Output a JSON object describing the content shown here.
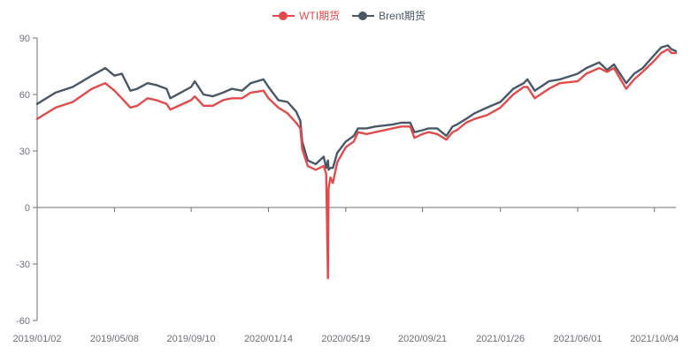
{
  "chart_data": {
    "type": "line",
    "title": "",
    "xlabel": "",
    "ylabel": "",
    "ylim": [
      -60,
      90
    ],
    "yticks": [
      90,
      60,
      30,
      0,
      -30,
      -60
    ],
    "categories": [
      "2019/01/02",
      "2019/05/08",
      "2019/09/10",
      "2020/01/14",
      "2020/05/19",
      "2020/09/21",
      "2021/01/26",
      "2021/06/01",
      "2021/10/04"
    ],
    "x": [
      "2019-01-02",
      "2019-02-01",
      "2019-03-01",
      "2019-04-01",
      "2019-04-23",
      "2019-05-08",
      "2019-05-20",
      "2019-06-03",
      "2019-06-14",
      "2019-07-01",
      "2019-07-15",
      "2019-08-01",
      "2019-08-07",
      "2019-09-10",
      "2019-09-16",
      "2019-09-30",
      "2019-10-15",
      "2019-11-01",
      "2019-11-15",
      "2019-12-02",
      "2019-12-16",
      "2020-01-06",
      "2020-01-14",
      "2020-01-30",
      "2020-02-14",
      "2020-02-28",
      "2020-03-06",
      "2020-03-09",
      "2020-03-18",
      "2020-03-31",
      "2020-04-13",
      "2020-04-17",
      "2020-04-20",
      "2020-04-21",
      "2020-04-24",
      "2020-04-28",
      "2020-05-05",
      "2020-05-19",
      "2020-06-01",
      "2020-06-08",
      "2020-06-22",
      "2020-07-06",
      "2020-08-03",
      "2020-08-17",
      "2020-09-01",
      "2020-09-08",
      "2020-09-21",
      "2020-10-01",
      "2020-10-15",
      "2020-10-30",
      "2020-11-09",
      "2020-11-16",
      "2020-12-01",
      "2020-12-15",
      "2021-01-04",
      "2021-01-26",
      "2021-02-16",
      "2021-03-05",
      "2021-03-11",
      "2021-03-23",
      "2021-04-15",
      "2021-05-03",
      "2021-06-01",
      "2021-06-15",
      "2021-07-06",
      "2021-07-19",
      "2021-07-30",
      "2021-08-19",
      "2021-09-01",
      "2021-09-15",
      "2021-10-04",
      "2021-10-15",
      "2021-10-26",
      "2021-11-01",
      "2021-11-08"
    ],
    "series": [
      {
        "name": "WTI期货",
        "color": "#e24b4b",
        "values": [
          47,
          53,
          56,
          63,
          66,
          62,
          58,
          53,
          54,
          58,
          57,
          55,
          52,
          57,
          59,
          54,
          54,
          57,
          58,
          58,
          61,
          62,
          58,
          53,
          50,
          45,
          42,
          31,
          22,
          20,
          22,
          18,
          -37.6,
          10,
          16,
          13,
          24,
          32,
          35,
          40,
          39,
          40,
          42,
          43,
          43,
          37,
          39,
          40,
          39,
          36,
          40,
          41,
          45,
          47,
          49,
          53,
          60,
          64,
          64,
          58,
          63,
          66,
          67,
          71,
          74,
          72,
          74,
          63,
          68,
          72,
          78,
          82,
          84,
          82,
          82
        ]
      },
      {
        "name": "Brent期货",
        "color": "#4a5866",
        "values": [
          55,
          61,
          64,
          70,
          74,
          70,
          71,
          62,
          63,
          66,
          65,
          63,
          58,
          64,
          67,
          60,
          59,
          61,
          63,
          62,
          66,
          68,
          64,
          57,
          56,
          51,
          46,
          35,
          25,
          23,
          27,
          21,
          25,
          20,
          21,
          21,
          29,
          35,
          38,
          42,
          42,
          43,
          44,
          45,
          45,
          40,
          41,
          42,
          42,
          38,
          43,
          44,
          47,
          50,
          53,
          56,
          63,
          66,
          68,
          62,
          67,
          68,
          71,
          74,
          77,
          73,
          76,
          66,
          71,
          74,
          81,
          85,
          86,
          84,
          83
        ]
      }
    ],
    "legend_position": "top-center",
    "grid": false
  }
}
